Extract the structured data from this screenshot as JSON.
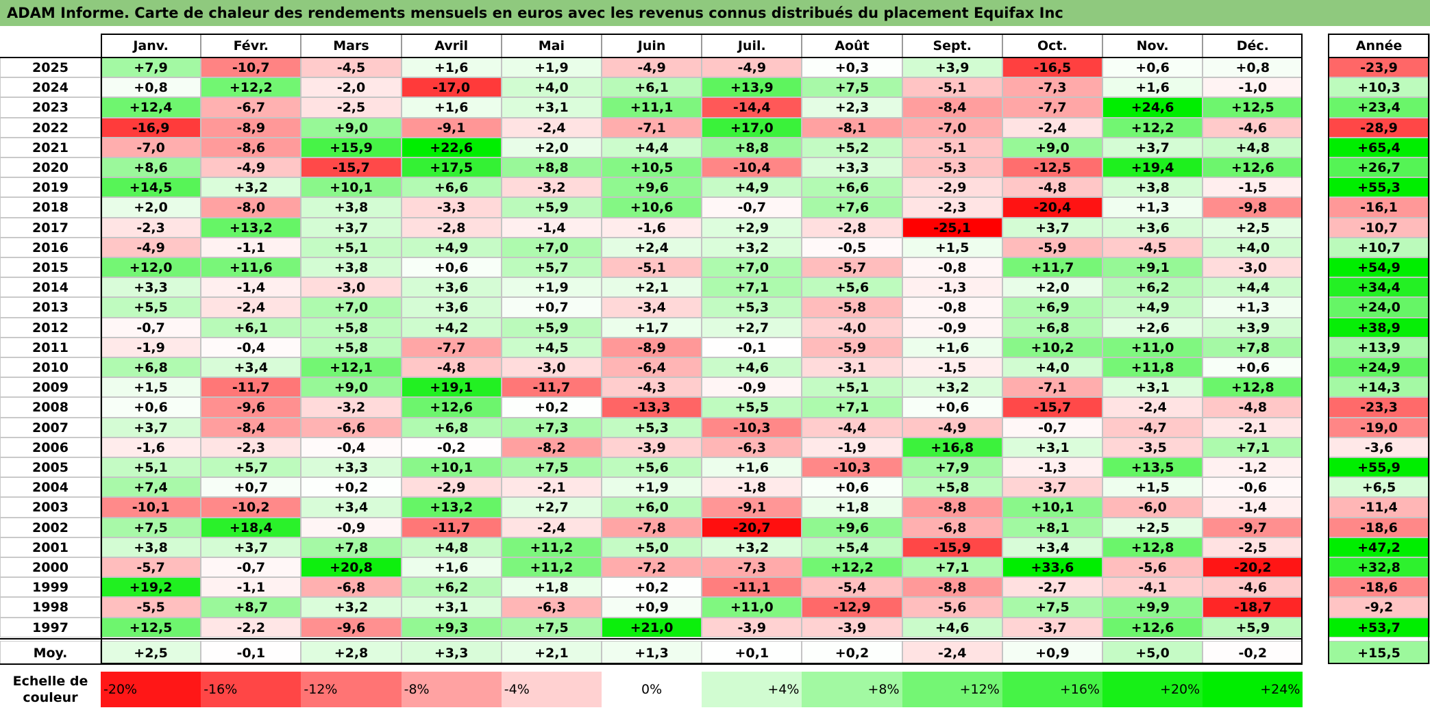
{
  "title": "ADAM Informe. Carte de chaleur des rendements mensuels en euros avec les revenus connus distribués du placement Equifax Inc",
  "chart_data": {
    "type": "heatmap",
    "title": "ADAM Informe. Carte de chaleur des rendements mensuels en euros avec les revenus connus distribués du placement Equifax Inc",
    "columns": [
      "Janv.",
      "Févr.",
      "Mars",
      "Avril",
      "Mai",
      "Juin",
      "Juil.",
      "Août",
      "Sept.",
      "Oct.",
      "Nov.",
      "Déc."
    ],
    "annual_header": "Année",
    "rows": [
      {
        "label": "2025",
        "values": [
          7.9,
          -10.7,
          -4.5,
          1.6,
          1.9,
          -4.9,
          -4.9,
          0.3,
          3.9,
          -16.5,
          0.6,
          0.8
        ],
        "annual": -23.9
      },
      {
        "label": "2024",
        "values": [
          0.8,
          12.2,
          -2.0,
          -17.0,
          4.0,
          6.1,
          13.9,
          7.5,
          -5.1,
          -7.3,
          1.6,
          -1.0
        ],
        "annual": 10.3
      },
      {
        "label": "2023",
        "values": [
          12.4,
          -6.7,
          -2.5,
          1.6,
          3.1,
          11.1,
          -14.4,
          2.3,
          -8.4,
          -7.7,
          24.6,
          12.5
        ],
        "annual": 23.4
      },
      {
        "label": "2022",
        "values": [
          -16.9,
          -8.9,
          9.0,
          -9.1,
          -2.4,
          -7.1,
          17.0,
          -8.1,
          -7.0,
          -2.4,
          12.2,
          -4.6
        ],
        "annual": -28.9
      },
      {
        "label": "2021",
        "values": [
          -7.0,
          -8.6,
          15.9,
          22.6,
          2.0,
          4.4,
          8.8,
          5.2,
          -5.1,
          9.0,
          3.7,
          4.8
        ],
        "annual": 65.4
      },
      {
        "label": "2020",
        "values": [
          8.6,
          -4.9,
          -15.7,
          17.5,
          8.8,
          10.5,
          -10.4,
          3.3,
          -5.3,
          -12.5,
          19.4,
          12.6
        ],
        "annual": 26.7
      },
      {
        "label": "2019",
        "values": [
          14.5,
          3.2,
          10.1,
          6.6,
          -3.2,
          9.6,
          4.9,
          6.6,
          -2.9,
          -4.8,
          3.8,
          -1.5
        ],
        "annual": 55.3
      },
      {
        "label": "2018",
        "values": [
          2.0,
          -8.0,
          3.8,
          -3.3,
          5.9,
          10.6,
          -0.7,
          7.6,
          -2.3,
          -20.4,
          1.3,
          -9.8
        ],
        "annual": -16.1
      },
      {
        "label": "2017",
        "values": [
          -2.3,
          13.2,
          3.7,
          -2.8,
          -1.4,
          -1.6,
          2.9,
          -2.8,
          -25.1,
          3.7,
          3.6,
          2.5
        ],
        "annual": -10.7
      },
      {
        "label": "2016",
        "values": [
          -4.9,
          -1.1,
          5.1,
          4.9,
          7.0,
          2.4,
          3.2,
          -0.5,
          1.5,
          -5.9,
          -4.5,
          4.0
        ],
        "annual": 10.7
      },
      {
        "label": "2015",
        "values": [
          12.0,
          11.6,
          3.8,
          0.6,
          5.7,
          -5.1,
          7.0,
          -5.7,
          -0.8,
          11.7,
          9.1,
          -3.0
        ],
        "annual": 54.9
      },
      {
        "label": "2014",
        "values": [
          3.3,
          -1.4,
          -3.0,
          3.6,
          1.9,
          2.1,
          7.1,
          5.6,
          -1.3,
          2.0,
          6.2,
          4.4
        ],
        "annual": 34.4
      },
      {
        "label": "2013",
        "values": [
          5.5,
          -2.4,
          7.0,
          3.6,
          0.7,
          -3.4,
          5.3,
          -5.8,
          -0.8,
          6.9,
          4.9,
          1.3
        ],
        "annual": 24.0
      },
      {
        "label": "2012",
        "values": [
          -0.7,
          6.1,
          5.8,
          4.2,
          5.9,
          1.7,
          2.7,
          -4.0,
          -0.9,
          6.8,
          2.6,
          3.9
        ],
        "annual": 38.9
      },
      {
        "label": "2011",
        "values": [
          -1.9,
          -0.4,
          5.8,
          -7.7,
          4.5,
          -8.9,
          -0.1,
          -5.9,
          1.6,
          10.2,
          11.0,
          7.8
        ],
        "annual": 13.9
      },
      {
        "label": "2010",
        "values": [
          6.8,
          3.4,
          12.1,
          -4.8,
          -3.0,
          -6.4,
          4.6,
          -3.1,
          -1.5,
          4.0,
          11.8,
          0.6
        ],
        "annual": 24.9
      },
      {
        "label": "2009",
        "values": [
          1.5,
          -11.7,
          9.0,
          19.1,
          -11.7,
          -4.3,
          -0.9,
          5.1,
          3.2,
          -7.1,
          3.1,
          12.8
        ],
        "annual": 14.3
      },
      {
        "label": "2008",
        "values": [
          0.6,
          -9.6,
          -3.2,
          12.6,
          0.2,
          -13.3,
          5.5,
          7.1,
          0.6,
          -15.7,
          -2.4,
          -4.8
        ],
        "annual": -23.3
      },
      {
        "label": "2007",
        "values": [
          3.7,
          -8.4,
          -6.6,
          6.8,
          7.3,
          5.3,
          -10.3,
          -4.4,
          -4.9,
          -0.7,
          -4.7,
          -2.1
        ],
        "annual": -19.0
      },
      {
        "label": "2006",
        "values": [
          -1.6,
          -2.3,
          -0.4,
          -0.2,
          -8.2,
          -3.9,
          -6.3,
          -1.9,
          16.8,
          3.1,
          -3.5,
          7.1
        ],
        "annual": -3.6
      },
      {
        "label": "2005",
        "values": [
          5.1,
          5.7,
          3.3,
          10.1,
          7.5,
          5.6,
          1.6,
          -10.3,
          7.9,
          -1.3,
          13.5,
          -1.2
        ],
        "annual": 55.9
      },
      {
        "label": "2004",
        "values": [
          7.4,
          0.7,
          0.2,
          -2.9,
          -2.1,
          1.9,
          -1.8,
          0.6,
          5.8,
          -3.7,
          1.5,
          -0.6
        ],
        "annual": 6.5
      },
      {
        "label": "2003",
        "values": [
          -10.1,
          -10.2,
          3.4,
          13.2,
          2.7,
          6.0,
          -9.1,
          1.8,
          -8.8,
          10.1,
          -6.0,
          -1.4
        ],
        "annual": -11.4
      },
      {
        "label": "2002",
        "values": [
          7.5,
          18.4,
          -0.9,
          -11.7,
          -2.4,
          -7.8,
          -20.7,
          9.6,
          -6.8,
          8.1,
          2.5,
          -9.7
        ],
        "annual": -18.6
      },
      {
        "label": "2001",
        "values": [
          3.8,
          3.7,
          7.8,
          4.8,
          11.2,
          5.0,
          3.2,
          5.4,
          -15.9,
          3.4,
          12.8,
          -2.5
        ],
        "annual": 47.2
      },
      {
        "label": "2000",
        "values": [
          -5.7,
          -0.7,
          20.8,
          1.6,
          11.2,
          -7.2,
          -7.3,
          12.2,
          7.1,
          33.6,
          -5.6,
          -20.2
        ],
        "annual": 32.8
      },
      {
        "label": "1999",
        "values": [
          19.2,
          -1.1,
          -6.8,
          6.2,
          1.8,
          0.2,
          -11.1,
          -5.4,
          -8.8,
          -2.7,
          -4.1,
          -4.6
        ],
        "annual": -18.6
      },
      {
        "label": "1998",
        "values": [
          -5.5,
          8.7,
          3.2,
          3.1,
          -6.3,
          0.9,
          11.0,
          -12.9,
          -5.6,
          7.5,
          9.9,
          -18.7
        ],
        "annual": -9.2
      },
      {
        "label": "1997",
        "values": [
          12.5,
          -2.2,
          -9.6,
          9.3,
          7.5,
          21.0,
          -3.9,
          -3.9,
          4.6,
          -3.7,
          12.6,
          5.9
        ],
        "annual": 53.7
      }
    ],
    "average": {
      "label": "Moy.",
      "values": [
        2.5,
        -0.1,
        2.8,
        3.3,
        2.1,
        1.3,
        0.1,
        0.2,
        -2.4,
        0.9,
        5.0,
        -0.2
      ],
      "annual": 15.5
    },
    "color_scale": {
      "label": "Echelle de couleur",
      "stops": [
        {
          "text": "-20%",
          "value": -20,
          "align": "left"
        },
        {
          "text": "-16%",
          "value": -16,
          "align": "left"
        },
        {
          "text": "-12%",
          "value": -12,
          "align": "left"
        },
        {
          "text": "-8%",
          "value": -8,
          "align": "left"
        },
        {
          "text": "-4%",
          "value": -4,
          "align": "left"
        },
        {
          "text": "0%",
          "value": 0,
          "align": "center"
        },
        {
          "text": "+4%",
          "value": 4,
          "align": "right"
        },
        {
          "text": "+8%",
          "value": 8,
          "align": "right"
        },
        {
          "text": "+12%",
          "value": 12,
          "align": "right"
        },
        {
          "text": "+16%",
          "value": 16,
          "align": "right"
        },
        {
          "text": "+20%",
          "value": 20,
          "align": "right"
        },
        {
          "text": "+24%",
          "value": 24,
          "align": "right"
        }
      ],
      "colors": {
        "negative_max": "#ff0000",
        "neutral": "#ffffff",
        "positive_max": "#00ee00"
      }
    }
  }
}
